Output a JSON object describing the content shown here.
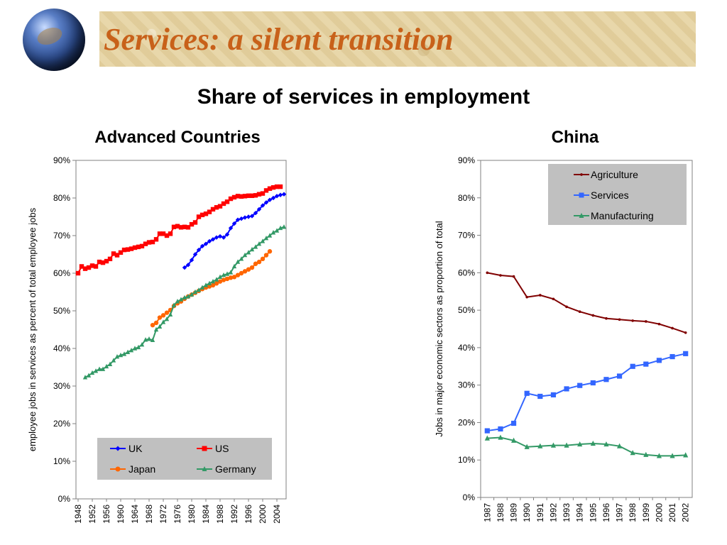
{
  "slide": {
    "title": "Services: a silent transition",
    "subtitle": "Share of services in employment"
  },
  "chart_data": [
    {
      "type": "line",
      "title": "Advanced Countries",
      "ylabel": "employee jobs in services as percent of total employee jobs",
      "xlabel": "",
      "ylim": [
        0,
        90
      ],
      "xlim": [
        1948,
        2006
      ],
      "y_ticks": [
        "0%",
        "10%",
        "20%",
        "30%",
        "40%",
        "50%",
        "60%",
        "70%",
        "80%",
        "90%"
      ],
      "x_ticks": [
        "1948",
        "1952",
        "1956",
        "1960",
        "1964",
        "1968",
        "1972",
        "1976",
        "1980",
        "1984",
        "1988",
        "1992",
        "1996",
        "2000",
        "2004"
      ],
      "legend": {
        "placement": "bottom",
        "columns": 2
      },
      "series": [
        {
          "name": "UK",
          "color": "#0000ff",
          "marker": "diamond",
          "x": [
            1978,
            1979,
            1980,
            1981,
            1982,
            1983,
            1984,
            1985,
            1986,
            1987,
            1988,
            1989,
            1990,
            1991,
            1992,
            1993,
            1994,
            1995,
            1996,
            1997,
            1998,
            1999,
            2000,
            2001,
            2002,
            2003,
            2004,
            2005,
            2006
          ],
          "y": [
            61.5,
            62.2,
            63.5,
            65,
            66.2,
            67.2,
            67.8,
            68.5,
            69,
            69.5,
            69.8,
            69.5,
            70.3,
            72,
            73.2,
            74.2,
            74.5,
            74.8,
            75,
            75.2,
            76,
            77,
            78,
            78.8,
            79.5,
            80,
            80.5,
            80.8,
            81
          ]
        },
        {
          "name": "US",
          "color": "#ff0000",
          "marker": "square",
          "x": [
            1948,
            1949,
            1950,
            1951,
            1952,
            1953,
            1954,
            1955,
            1956,
            1957,
            1958,
            1959,
            1960,
            1961,
            1962,
            1963,
            1964,
            1965,
            1966,
            1967,
            1968,
            1969,
            1970,
            1971,
            1972,
            1973,
            1974,
            1975,
            1976,
            1977,
            1978,
            1979,
            1980,
            1981,
            1982,
            1983,
            1984,
            1985,
            1986,
            1987,
            1988,
            1989,
            1990,
            1991,
            1992,
            1993,
            1994,
            1995,
            1996,
            1997,
            1998,
            1999,
            2000,
            2001,
            2002,
            2003,
            2004,
            2005
          ],
          "y": [
            60,
            61.8,
            61.2,
            61.5,
            62,
            61.8,
            63,
            62.8,
            63.2,
            63.8,
            65.2,
            64.8,
            65.5,
            66.2,
            66.3,
            66.5,
            66.8,
            67,
            67.2,
            67.8,
            68.2,
            68.3,
            69,
            70.5,
            70.5,
            70,
            70.5,
            72.3,
            72.5,
            72.2,
            72.3,
            72.2,
            73,
            73.5,
            75,
            75.5,
            75.8,
            76.3,
            77,
            77.5,
            77.8,
            78.5,
            79,
            79.8,
            80.2,
            80.5,
            80.4,
            80.5,
            80.6,
            80.6,
            80.7,
            81,
            81.2,
            82,
            82.5,
            82.8,
            83,
            83
          ]
        },
        {
          "name": "Japan",
          "color": "#ff6600",
          "marker": "circle",
          "x": [
            1969,
            1970,
            1971,
            1972,
            1973,
            1974,
            1975,
            1976,
            1977,
            1978,
            1979,
            1980,
            1981,
            1982,
            1983,
            1984,
            1985,
            1986,
            1987,
            1988,
            1989,
            1990,
            1991,
            1992,
            1993,
            1994,
            1995,
            1996,
            1997,
            1998,
            1999,
            2000,
            2001,
            2002
          ],
          "y": [
            46.2,
            46.8,
            48.2,
            48.8,
            49.5,
            50.2,
            51.3,
            52,
            52.5,
            53.2,
            53.8,
            54.3,
            54.8,
            55.3,
            55.8,
            56.2,
            56.5,
            56.8,
            57.3,
            57.8,
            58.2,
            58.5,
            58.8,
            59,
            59.5,
            60,
            60.5,
            61,
            61.5,
            62.5,
            63,
            63.8,
            64.8,
            65.8
          ]
        },
        {
          "name": "Germany",
          "color": "#339966",
          "marker": "triangle",
          "x": [
            1950,
            1951,
            1952,
            1953,
            1954,
            1955,
            1956,
            1957,
            1958,
            1959,
            1960,
            1961,
            1962,
            1963,
            1964,
            1965,
            1966,
            1967,
            1968,
            1969,
            1970,
            1971,
            1972,
            1973,
            1974,
            1975,
            1976,
            1977,
            1978,
            1979,
            1980,
            1981,
            1982,
            1983,
            1984,
            1985,
            1986,
            1987,
            1988,
            1989,
            1990,
            1991,
            1992,
            1993,
            1994,
            1995,
            1996,
            1997,
            1998,
            1999,
            2000,
            2001,
            2002,
            2003,
            2004,
            2005,
            2006
          ],
          "y": [
            32.3,
            32.8,
            33.5,
            34,
            34.5,
            34.5,
            35.2,
            35.8,
            36.8,
            37.8,
            38.2,
            38.5,
            39,
            39.5,
            40,
            40.3,
            41,
            42.3,
            42.5,
            42.2,
            45,
            45.8,
            47,
            47.8,
            49,
            51.5,
            52.5,
            53,
            53.5,
            53.8,
            54.3,
            55,
            55.5,
            56.2,
            56.8,
            57.3,
            57.8,
            58.3,
            59,
            59.5,
            59.8,
            60.2,
            61.8,
            63,
            63.8,
            64.8,
            65.5,
            66.3,
            67,
            67.8,
            68.5,
            69.3,
            70,
            70.8,
            71.3,
            72,
            72.3
          ]
        }
      ]
    },
    {
      "type": "line",
      "title": "China",
      "ylabel": "Jobs in major economic sectors as proportion of total",
      "xlabel": "",
      "ylim": [
        0,
        90
      ],
      "y_ticks": [
        "0%",
        "10%",
        "20%",
        "30%",
        "40%",
        "50%",
        "60%",
        "70%",
        "80%",
        "90%"
      ],
      "categories": [
        "1987",
        "1988",
        "1989",
        "1990",
        "1991",
        "1992",
        "1993",
        "1994",
        "1995",
        "1996",
        "1997",
        "1998",
        "1999",
        "2000",
        "2001",
        "2002"
      ],
      "legend": {
        "placement": "top-right",
        "columns": 1
      },
      "series": [
        {
          "name": "Agriculture",
          "color": "#800000",
          "marker": "dot",
          "values": [
            60,
            59.3,
            59,
            53.5,
            54,
            53,
            50.9,
            49.6,
            48.6,
            47.8,
            47.5,
            47.2,
            47,
            46.3,
            45.2,
            44
          ]
        },
        {
          "name": "Services",
          "color": "#3366ff",
          "marker": "square",
          "values": [
            17.8,
            18.3,
            19.8,
            27.8,
            27,
            27.4,
            29,
            29.9,
            30.6,
            31.5,
            32.4,
            35,
            35.6,
            36.6,
            37.6,
            38.4
          ]
        },
        {
          "name": "Manufacturing",
          "color": "#339966",
          "marker": "triangle",
          "values": [
            15.8,
            16,
            15.2,
            13.5,
            13.7,
            13.9,
            13.9,
            14.2,
            14.4,
            14.2,
            13.7,
            11.9,
            11.4,
            11.1,
            11.1,
            11.3
          ]
        }
      ]
    }
  ]
}
